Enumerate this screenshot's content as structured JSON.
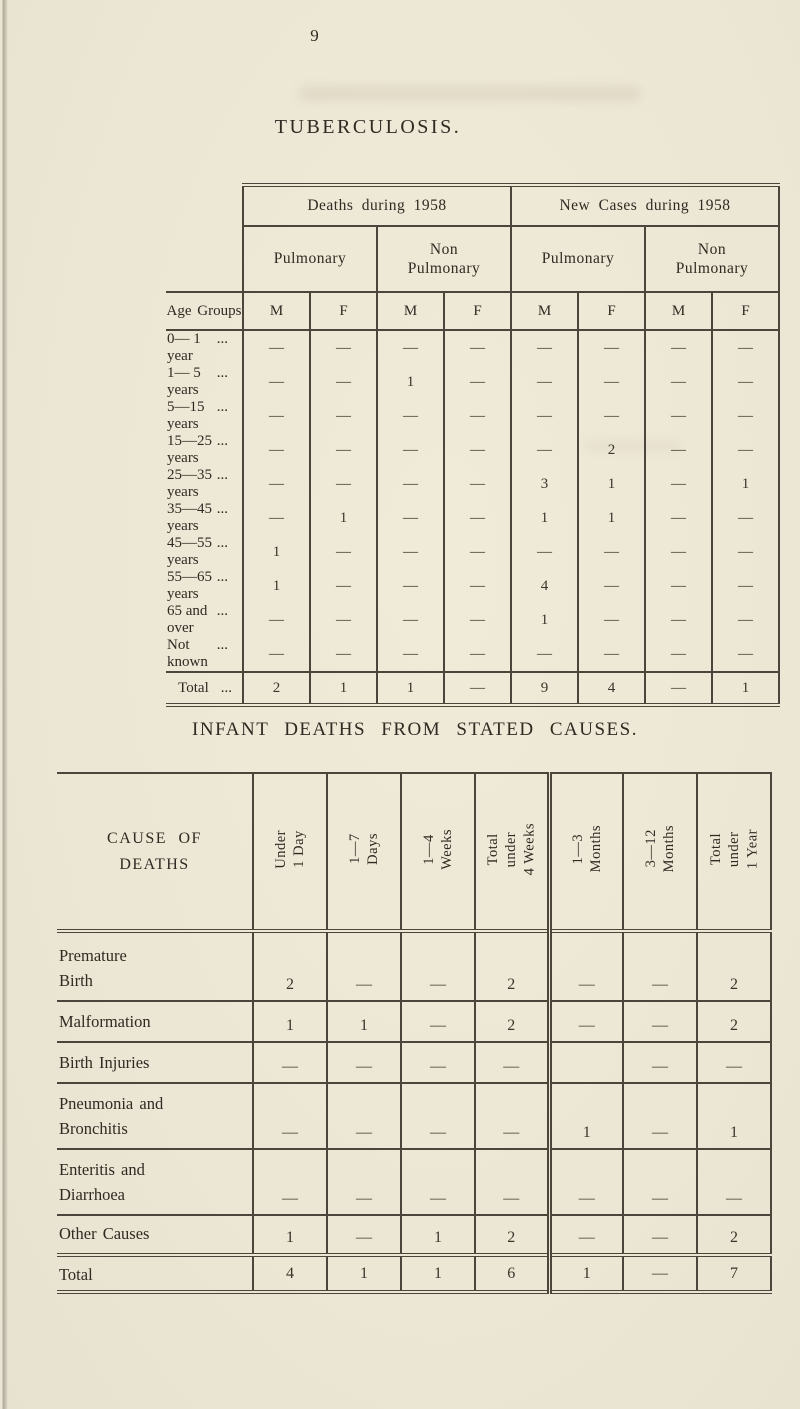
{
  "colors": {
    "paper": "#ede7d6",
    "ink": "#2f2a22",
    "line": "#4b453b"
  },
  "page": {
    "number": "9"
  },
  "section1": {
    "title": "TUBERCULOSIS.",
    "table": {
      "age_col_header": "Age Groups",
      "group_headers": [
        "Deaths during 1958",
        "New Cases during 1958"
      ],
      "sub_headers": [
        "Pulmonary",
        "Non\nPulmonary",
        "Pulmonary",
        "Non\nPulmonary"
      ],
      "sex_headers": [
        "M",
        "F",
        "M",
        "F",
        "M",
        "F",
        "M",
        "F"
      ],
      "rows": [
        {
          "label": "0— 1 year",
          "dots": "...",
          "values": [
            "—",
            "—",
            "—",
            "—",
            "—",
            "—",
            "—",
            "—"
          ]
        },
        {
          "label": "1— 5 years",
          "dots": "...",
          "values": [
            "—",
            "—",
            "1",
            "—",
            "—",
            "—",
            "—",
            "—"
          ]
        },
        {
          "label": "5—15 years",
          "dots": "...",
          "values": [
            "—",
            "—",
            "—",
            "—",
            "—",
            "—",
            "—",
            "—"
          ]
        },
        {
          "label": "15—25 years",
          "dots": "...",
          "values": [
            "—",
            "—",
            "—",
            "—",
            "—",
            "2",
            "—",
            "—"
          ]
        },
        {
          "label": "25—35 years",
          "dots": "...",
          "values": [
            "—",
            "—",
            "—",
            "—",
            "3",
            "1",
            "—",
            "1"
          ]
        },
        {
          "label": "35—45 years",
          "dots": "...",
          "values": [
            "—",
            "1",
            "—",
            "—",
            "1",
            "1",
            "—",
            "—"
          ]
        },
        {
          "label": "45—55 years",
          "dots": "...",
          "values": [
            "1",
            "—",
            "—",
            "—",
            "—",
            "—",
            "—",
            "—"
          ]
        },
        {
          "label": "55—65 years",
          "dots": "...",
          "values": [
            "1",
            "—",
            "—",
            "—",
            "4",
            "—",
            "—",
            "—"
          ]
        },
        {
          "label": "65 and over",
          "dots": "...",
          "values": [
            "—",
            "—",
            "—",
            "—",
            "1",
            "—",
            "—",
            "—"
          ]
        },
        {
          "label": "Not known",
          "dots": "...",
          "values": [
            "—",
            "—",
            "—",
            "—",
            "—",
            "—",
            "—",
            "—"
          ]
        }
      ],
      "total_row": {
        "label": "Total",
        "dots": "...",
        "values": [
          "2",
          "1",
          "1",
          "—",
          "9",
          "4",
          "—",
          "1"
        ]
      }
    }
  },
  "section2": {
    "title": "INFANT DEATHS FROM STATED CAUSES.",
    "table": {
      "cause_header": "CAUSE OF\nDEATHS",
      "col_headers": [
        "Under\n1 Day",
        "1—7\nDays",
        "1—4\nWeeks",
        "Total\nunder\n4 Weeks",
        "1—3\nMonths",
        "3—12\nMonths",
        "Total\nunder\n1 Year"
      ],
      "rows": [
        {
          "label": "Premature\n Birth",
          "height_class": "r-premature",
          "values": [
            "2",
            "—",
            "—",
            "2",
            "—",
            "—",
            "2"
          ]
        },
        {
          "label": "Malformation",
          "height_class": "r-short",
          "values": [
            "1",
            "1",
            "—",
            "2",
            "—",
            "—",
            "2"
          ]
        },
        {
          "label": "Birth Injuries",
          "height_class": "r-short",
          "values": [
            "—",
            "—",
            "—",
            "—",
            "",
            "—",
            "—"
          ]
        },
        {
          "label": "Pneumonia and\n Bronchitis",
          "height_class": "r-tall",
          "values": [
            "—",
            "—",
            "—",
            "—",
            "1",
            "—",
            "1"
          ]
        },
        {
          "label": "Enteritis and\n Diarrhoea",
          "height_class": "r-tall",
          "values": [
            "—",
            "—",
            "—",
            "—",
            "—",
            "—",
            "—"
          ]
        },
        {
          "label": "Other Causes",
          "height_class": "r-other",
          "values": [
            "1",
            "—",
            "1",
            "2",
            "—",
            "—",
            "2"
          ]
        }
      ],
      "total_row": {
        "label": "Total",
        "values": [
          "4",
          "1",
          "1",
          "6",
          "1",
          "—",
          "7"
        ]
      }
    }
  }
}
